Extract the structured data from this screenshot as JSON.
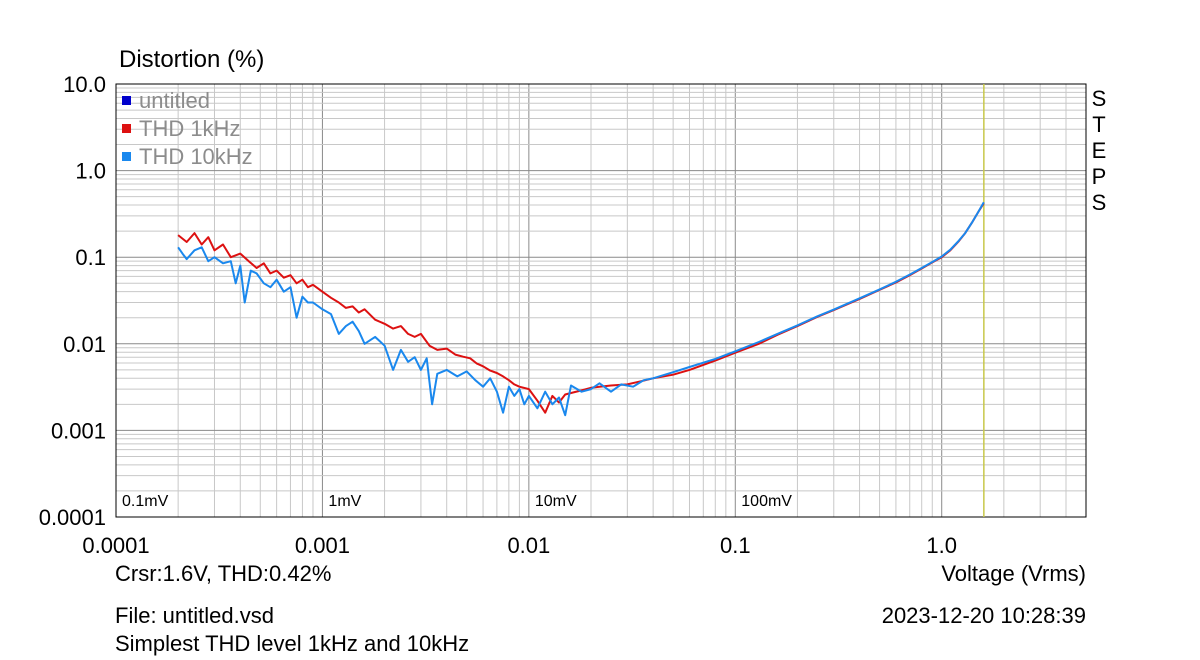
{
  "app": {
    "ylabel": "Distortion (%)",
    "xlabel": "Voltage (Vrms)",
    "cursor_readout": "Crsr:1.6V, THD:0.42%",
    "file_label": "File: untitled.vsd",
    "description": "Simplest THD level 1kHz and 10kHz",
    "datetime": "2023-12-20  10:28:39",
    "side_letters": [
      "S",
      "T",
      "E",
      "P",
      "S"
    ]
  },
  "chart_data": {
    "type": "line",
    "title": "",
    "xlabel": "Voltage (Vrms)",
    "ylabel": "Distortion (%)",
    "xscale": "log",
    "yscale": "log",
    "xlim": [
      0.0001,
      5
    ],
    "ylim": [
      0.0001,
      10
    ],
    "grid": true,
    "legend_position": "top-left",
    "x_tick_labels": [
      "0.0001",
      "0.001",
      "0.01",
      "0.1",
      "1.0"
    ],
    "x_tick_values": [
      0.0001,
      0.001,
      0.01,
      0.1,
      1.0
    ],
    "y_tick_labels": [
      "0.0001",
      "0.001",
      "0.01",
      "0.1",
      "1.0",
      "10.0"
    ],
    "y_tick_values": [
      0.0001,
      0.001,
      0.01,
      0.1,
      1.0,
      10.0
    ],
    "inner_labels": [
      {
        "text": "0.1mV",
        "x": 0.0001
      },
      {
        "text": "1mV",
        "x": 0.001
      },
      {
        "text": "10mV",
        "x": 0.01
      },
      {
        "text": "100mV",
        "x": 0.1
      }
    ],
    "cursor": {
      "x": 1.6,
      "color": "#c8c84a"
    },
    "series": [
      {
        "name": "untitled",
        "color": "#0000cc",
        "values": []
      },
      {
        "name": "THD 1kHz",
        "color": "#dd1111",
        "values": [
          [
            0.0002,
            0.18
          ],
          [
            0.00022,
            0.15
          ],
          [
            0.00024,
            0.19
          ],
          [
            0.00026,
            0.14
          ],
          [
            0.00028,
            0.17
          ],
          [
            0.0003,
            0.12
          ],
          [
            0.00033,
            0.14
          ],
          [
            0.00036,
            0.1
          ],
          [
            0.0004,
            0.11
          ],
          [
            0.00044,
            0.09
          ],
          [
            0.00048,
            0.075
          ],
          [
            0.00052,
            0.085
          ],
          [
            0.00056,
            0.065
          ],
          [
            0.0006,
            0.07
          ],
          [
            0.00065,
            0.058
          ],
          [
            0.0007,
            0.062
          ],
          [
            0.00075,
            0.05
          ],
          [
            0.0008,
            0.055
          ],
          [
            0.00085,
            0.045
          ],
          [
            0.0009,
            0.048
          ],
          [
            0.001,
            0.04
          ],
          [
            0.0011,
            0.034
          ],
          [
            0.0012,
            0.03
          ],
          [
            0.0013,
            0.026
          ],
          [
            0.0014,
            0.027
          ],
          [
            0.0015,
            0.023
          ],
          [
            0.0016,
            0.025
          ],
          [
            0.0018,
            0.019
          ],
          [
            0.002,
            0.017
          ],
          [
            0.0022,
            0.015
          ],
          [
            0.0024,
            0.016
          ],
          [
            0.0026,
            0.013
          ],
          [
            0.0028,
            0.012
          ],
          [
            0.003,
            0.013
          ],
          [
            0.0033,
            0.0095
          ],
          [
            0.0036,
            0.0085
          ],
          [
            0.004,
            0.0088
          ],
          [
            0.0044,
            0.0075
          ],
          [
            0.0048,
            0.0071
          ],
          [
            0.0052,
            0.0068
          ],
          [
            0.0056,
            0.0059
          ],
          [
            0.006,
            0.0055
          ],
          [
            0.0065,
            0.0049
          ],
          [
            0.007,
            0.0046
          ],
          [
            0.0075,
            0.0042
          ],
          [
            0.008,
            0.0038
          ],
          [
            0.0085,
            0.0034
          ],
          [
            0.009,
            0.0032
          ],
          [
            0.01,
            0.003
          ],
          [
            0.011,
            0.0022
          ],
          [
            0.012,
            0.0016
          ],
          [
            0.013,
            0.0025
          ],
          [
            0.014,
            0.0021
          ],
          [
            0.015,
            0.0026
          ],
          [
            0.016,
            0.0027
          ],
          [
            0.018,
            0.0029
          ],
          [
            0.02,
            0.0031
          ],
          [
            0.022,
            0.0032
          ],
          [
            0.025,
            0.0033
          ],
          [
            0.03,
            0.0034
          ],
          [
            0.035,
            0.0037
          ],
          [
            0.04,
            0.004
          ],
          [
            0.05,
            0.0044
          ],
          [
            0.06,
            0.005
          ],
          [
            0.08,
            0.0064
          ],
          [
            0.1,
            0.0079
          ],
          [
            0.13,
            0.01
          ],
          [
            0.16,
            0.0127
          ],
          [
            0.2,
            0.016
          ],
          [
            0.25,
            0.0205
          ],
          [
            0.3,
            0.0245
          ],
          [
            0.4,
            0.033
          ],
          [
            0.5,
            0.042
          ],
          [
            0.6,
            0.051
          ],
          [
            0.7,
            0.062
          ],
          [
            0.8,
            0.074
          ],
          [
            0.9,
            0.087
          ],
          [
            1.0,
            0.1
          ],
          [
            1.1,
            0.12
          ],
          [
            1.2,
            0.15
          ],
          [
            1.3,
            0.19
          ],
          [
            1.4,
            0.25
          ],
          [
            1.5,
            0.33
          ],
          [
            1.6,
            0.42
          ]
        ]
      },
      {
        "name": "THD 10kHz",
        "color": "#1a88ee",
        "values": [
          [
            0.0002,
            0.13
          ],
          [
            0.00021,
            0.11
          ],
          [
            0.00022,
            0.095
          ],
          [
            0.00024,
            0.12
          ],
          [
            0.00026,
            0.13
          ],
          [
            0.00028,
            0.09
          ],
          [
            0.0003,
            0.1
          ],
          [
            0.00033,
            0.085
          ],
          [
            0.00036,
            0.09
          ],
          [
            0.00038,
            0.05
          ],
          [
            0.0004,
            0.08
          ],
          [
            0.00042,
            0.03
          ],
          [
            0.00045,
            0.07
          ],
          [
            0.00048,
            0.065
          ],
          [
            0.00052,
            0.05
          ],
          [
            0.00056,
            0.045
          ],
          [
            0.0006,
            0.055
          ],
          [
            0.00065,
            0.04
          ],
          [
            0.0007,
            0.045
          ],
          [
            0.00075,
            0.02
          ],
          [
            0.0008,
            0.035
          ],
          [
            0.00085,
            0.03
          ],
          [
            0.0009,
            0.03
          ],
          [
            0.001,
            0.025
          ],
          [
            0.0011,
            0.022
          ],
          [
            0.0012,
            0.013
          ],
          [
            0.0013,
            0.016
          ],
          [
            0.0014,
            0.018
          ],
          [
            0.0015,
            0.014
          ],
          [
            0.0016,
            0.01
          ],
          [
            0.0018,
            0.012
          ],
          [
            0.002,
            0.0095
          ],
          [
            0.0022,
            0.005
          ],
          [
            0.0024,
            0.0085
          ],
          [
            0.0026,
            0.0062
          ],
          [
            0.0028,
            0.007
          ],
          [
            0.003,
            0.005
          ],
          [
            0.0032,
            0.0068
          ],
          [
            0.0034,
            0.002
          ],
          [
            0.0036,
            0.0045
          ],
          [
            0.004,
            0.005
          ],
          [
            0.0045,
            0.0042
          ],
          [
            0.005,
            0.0048
          ],
          [
            0.0055,
            0.0038
          ],
          [
            0.006,
            0.0032
          ],
          [
            0.0065,
            0.004
          ],
          [
            0.007,
            0.0028
          ],
          [
            0.0075,
            0.0016
          ],
          [
            0.008,
            0.0032
          ],
          [
            0.0085,
            0.0025
          ],
          [
            0.009,
            0.003
          ],
          [
            0.0095,
            0.002
          ],
          [
            0.01,
            0.0025
          ],
          [
            0.011,
            0.0018
          ],
          [
            0.012,
            0.0028
          ],
          [
            0.013,
            0.002
          ],
          [
            0.014,
            0.0024
          ],
          [
            0.015,
            0.0015
          ],
          [
            0.016,
            0.0033
          ],
          [
            0.018,
            0.0028
          ],
          [
            0.02,
            0.003
          ],
          [
            0.022,
            0.0035
          ],
          [
            0.025,
            0.0028
          ],
          [
            0.028,
            0.0034
          ],
          [
            0.032,
            0.0032
          ],
          [
            0.036,
            0.0038
          ],
          [
            0.04,
            0.004
          ],
          [
            0.05,
            0.0047
          ],
          [
            0.06,
            0.0054
          ],
          [
            0.08,
            0.0067
          ],
          [
            0.1,
            0.0082
          ],
          [
            0.13,
            0.0105
          ],
          [
            0.16,
            0.013
          ],
          [
            0.2,
            0.0163
          ],
          [
            0.25,
            0.0208
          ],
          [
            0.3,
            0.0248
          ],
          [
            0.4,
            0.0335
          ],
          [
            0.5,
            0.0425
          ],
          [
            0.6,
            0.052
          ],
          [
            0.7,
            0.063
          ],
          [
            0.8,
            0.075
          ],
          [
            0.9,
            0.088
          ],
          [
            1.0,
            0.102
          ],
          [
            1.1,
            0.122
          ],
          [
            1.2,
            0.152
          ],
          [
            1.3,
            0.19
          ],
          [
            1.4,
            0.25
          ],
          [
            1.5,
            0.33
          ],
          [
            1.6,
            0.43
          ]
        ]
      }
    ]
  }
}
